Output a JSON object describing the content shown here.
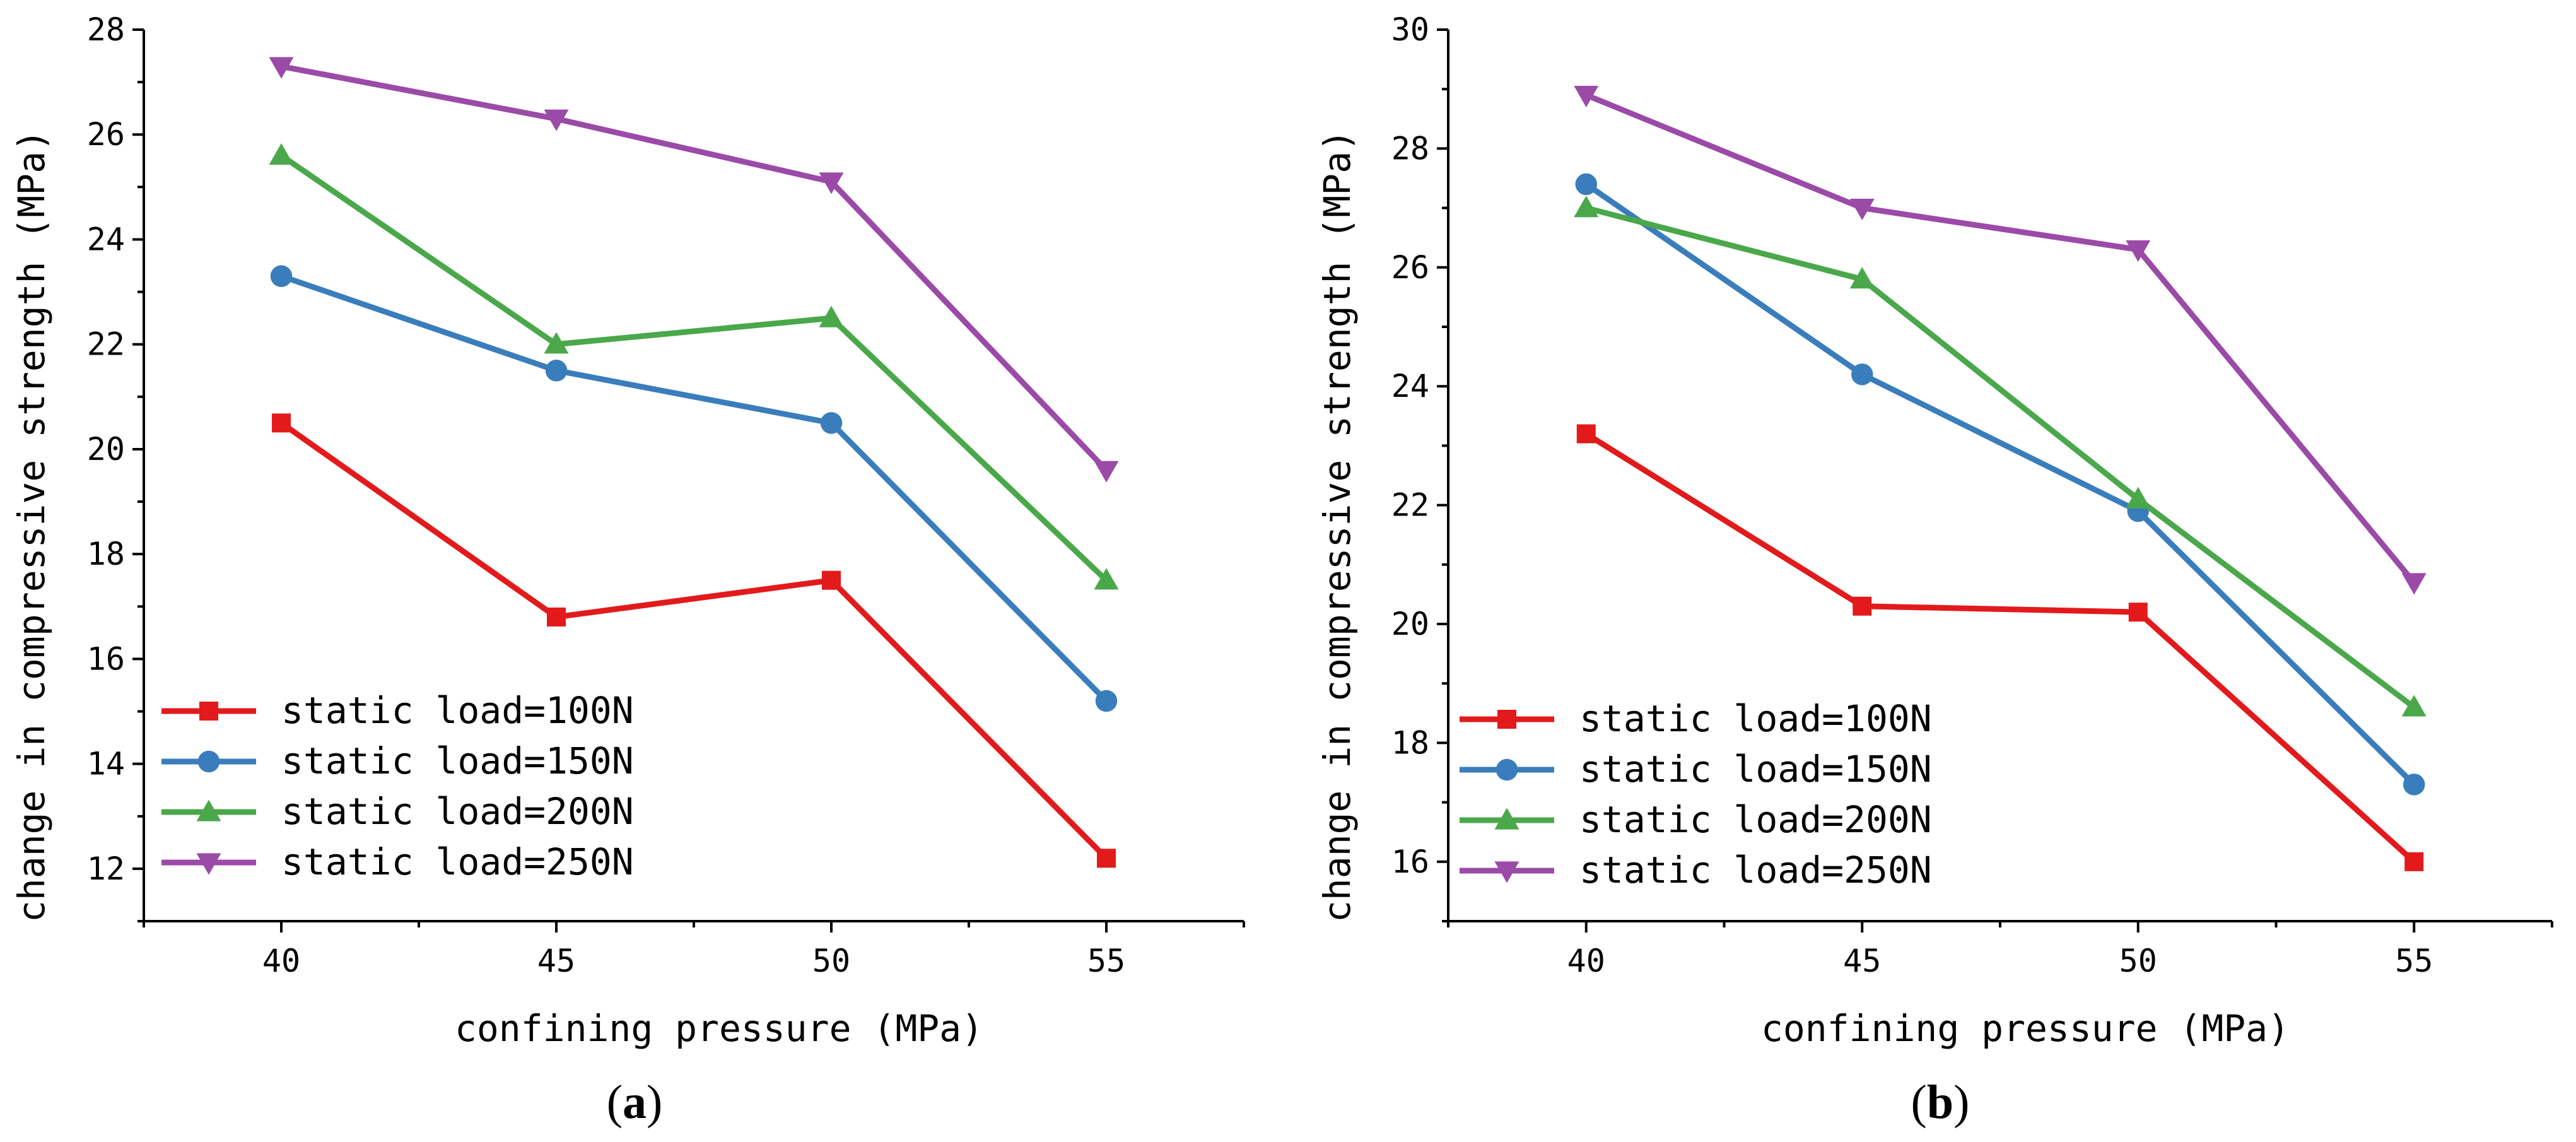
{
  "colors": {
    "static load=100N": "#e31a1c",
    "static load=150N": "#3a7dbc",
    "static load=200N": "#4aa84a",
    "static load=250N": "#9b4aa8"
  },
  "chart_data": [
    {
      "type": "line",
      "panel_label": "a",
      "xlabel": "confining pressure (MPa)",
      "ylabel": "change in compressive strength (MPa)",
      "x": [
        40,
        45,
        50,
        55
      ],
      "xticks": [
        "40",
        "45",
        "50",
        "55"
      ],
      "xlim": [
        37.5,
        57.5
      ],
      "ylim": [
        11,
        28
      ],
      "yticks": [
        "12",
        "14",
        "16",
        "18",
        "20",
        "22",
        "24",
        "26",
        "28"
      ],
      "legend_position": "bottom-left",
      "series": [
        {
          "name": "static load=100N",
          "marker": "square",
          "values": [
            20.5,
            16.8,
            17.5,
            12.2
          ]
        },
        {
          "name": "static load=150N",
          "marker": "circle",
          "values": [
            23.3,
            21.5,
            20.5,
            15.2
          ]
        },
        {
          "name": "static load=200N",
          "marker": "triangle-up",
          "values": [
            25.6,
            22.0,
            22.5,
            17.5
          ]
        },
        {
          "name": "static load=250N",
          "marker": "triangle-down",
          "values": [
            27.3,
            26.3,
            25.1,
            19.6
          ]
        }
      ]
    },
    {
      "type": "line",
      "panel_label": "b",
      "xlabel": "confining pressure (MPa)",
      "ylabel": "change in compressive strength (MPa)",
      "x": [
        40,
        45,
        50,
        55
      ],
      "xticks": [
        "40",
        "45",
        "50",
        "55"
      ],
      "xlim": [
        37.5,
        57.5
      ],
      "ylim": [
        15,
        30
      ],
      "yticks": [
        "16",
        "18",
        "20",
        "22",
        "24",
        "26",
        "28",
        "30"
      ],
      "legend_position": "bottom-left",
      "series": [
        {
          "name": "static load=100N",
          "marker": "square",
          "values": [
            23.2,
            20.3,
            20.2,
            16.0
          ]
        },
        {
          "name": "static load=150N",
          "marker": "circle",
          "values": [
            27.4,
            24.2,
            21.9,
            17.3
          ]
        },
        {
          "name": "static load=200N",
          "marker": "triangle-up",
          "values": [
            27.0,
            25.8,
            22.1,
            18.6
          ]
        },
        {
          "name": "static load=250N",
          "marker": "triangle-down",
          "values": [
            28.9,
            27.0,
            26.3,
            20.7
          ]
        }
      ]
    }
  ]
}
